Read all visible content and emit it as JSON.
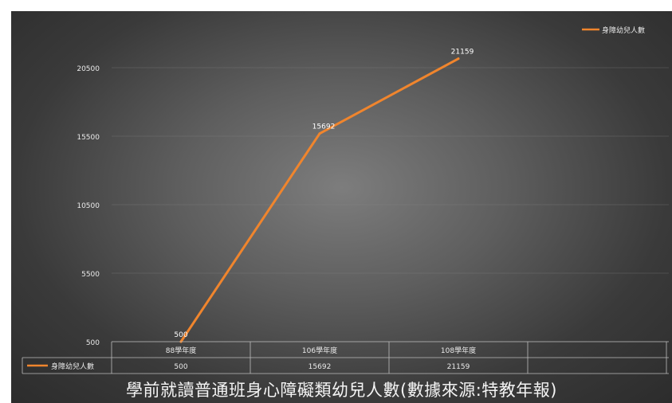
{
  "chart_data": {
    "type": "line",
    "title": "學前就讀普通班身心障礙類幼兒人數(數據來源:特教年報)",
    "categories": [
      "88學年度",
      "106學年度",
      "108學年度"
    ],
    "series": [
      {
        "name": "身障幼兒人數",
        "values": [
          500,
          15692,
          21159
        ],
        "data_labels": [
          "500",
          "15692",
          "21159"
        ],
        "color": "#f0852d"
      }
    ],
    "y_ticks": [
      "500",
      "5500",
      "10500",
      "15500",
      "20500"
    ],
    "ylim": [
      500,
      20500
    ],
    "grid": true,
    "legend_position": "top-right",
    "data_table": true,
    "colors": {
      "line": "#f0852d",
      "text": "#eaeaea",
      "grid": "#8a8a8a",
      "table_border": "#bdbdbd"
    }
  }
}
